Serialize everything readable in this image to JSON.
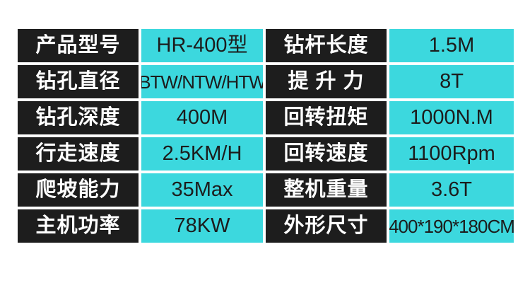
{
  "theme": {
    "page_bg": "#ffffff",
    "label_bg": "#1d1d1d",
    "label_fg": "#ffffff",
    "value_bg": "#3cd8de",
    "value_fg": "#1c1c1c"
  },
  "table": {
    "rows": [
      {
        "l1": "产品型号",
        "v1": "HR-400型",
        "l2": "钻杆长度",
        "v2": "1.5M"
      },
      {
        "l1": "钻孔直径",
        "v1": "BTW/NTW/HTW",
        "l2": "提 升 力",
        "v2": "8T"
      },
      {
        "l1": "钻孔深度",
        "v1": "400M",
        "l2": "回转扭矩",
        "v2": "1000N.M"
      },
      {
        "l1": "行走速度",
        "v1": "2.5KM/H",
        "l2": "回转速度",
        "v2": "1100Rpm"
      },
      {
        "l1": "爬坡能力",
        "v1": "35Max",
        "l2": "整机重量",
        "v2": "3.6T"
      },
      {
        "l1": "主机功率",
        "v1": "78KW",
        "l2": "外形尺寸",
        "v2": "400*190*180CM"
      }
    ]
  }
}
